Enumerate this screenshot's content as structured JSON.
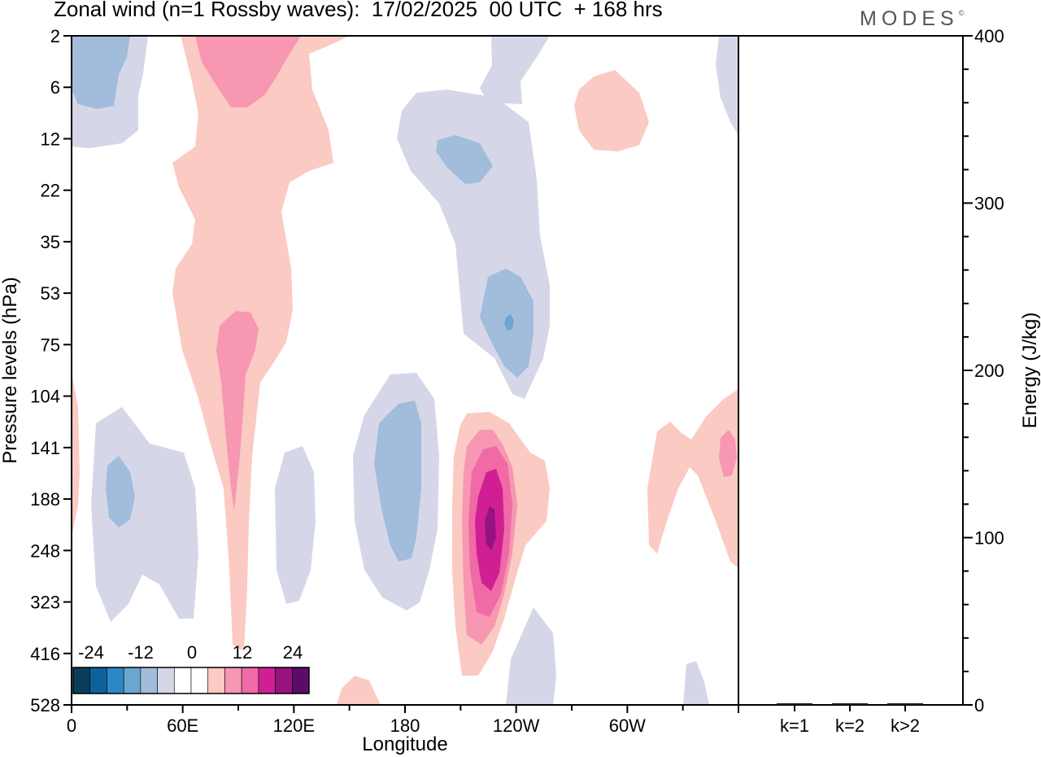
{
  "header": {
    "title": "Zonal wind (n=1 Rossby waves):  17/02/2025  00 UTC  + 168 hrs",
    "logo": "MODES"
  },
  "chart_data": [
    {
      "type": "heatmap",
      "title": "Zonal wind (n=1 Rossby waves):  17/02/2025  00 UTC  + 168 hrs",
      "xlabel": "Longitude",
      "ylabel": "Pressure levels (hPa)",
      "x_ticks": [
        "0",
        "60E",
        "120E",
        "180",
        "120W",
        "60W"
      ],
      "y_ticks": [
        "2",
        "6",
        "12",
        "22",
        "35",
        "53",
        "75",
        "104",
        "141",
        "188",
        "248",
        "323",
        "416",
        "528"
      ],
      "colorbar": {
        "labels": [
          "-24",
          "-12",
          "0",
          "12",
          "24"
        ],
        "levels": [
          -24,
          -18,
          -12,
          -6,
          -3,
          0,
          3,
          6,
          12,
          18,
          24
        ],
        "colors": [
          "#0a3e5c",
          "#0d6299",
          "#2c88c6",
          "#6aa6d0",
          "#a2bcdb",
          "#d5d7e8",
          "#ffffff",
          "#ffffff",
          "#fbcac3",
          "#f797b1",
          "#ef6aa6",
          "#d01f92",
          "#95137f",
          "#5d0b6a"
        ]
      }
    },
    {
      "type": "bar",
      "ylabel": "Energy (J/kg)",
      "categories": [
        "k=1",
        "k=2",
        "k>2"
      ],
      "values": [
        0.5,
        0.4,
        0.8
      ],
      "ylim": [
        0,
        400
      ],
      "y_ticks": [
        "0",
        "100",
        "200",
        "300",
        "400"
      ]
    }
  ]
}
